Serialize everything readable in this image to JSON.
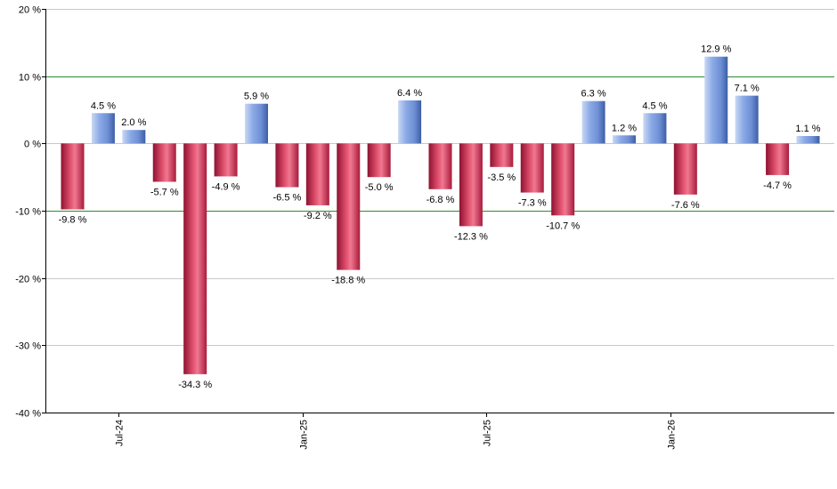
{
  "chart_data": {
    "type": "bar",
    "title": "",
    "xlabel": "",
    "ylabel": "",
    "ylim": [
      -40,
      20
    ],
    "y_ticks": [
      20,
      10,
      0,
      -10,
      -20,
      -30,
      -40
    ],
    "y_tick_labels": [
      "20 %",
      "10 %",
      "0 %",
      "-10 %",
      "-20 %",
      "-30 %",
      "-40 %"
    ],
    "reference_lines": [
      10,
      -10
    ],
    "x_tick_labels": [
      {
        "label": "Jul-24",
        "category_index": 1.5
      },
      {
        "label": "Jan-25",
        "category_index": 7.5
      },
      {
        "label": "Jul-25",
        "category_index": 13.5
      },
      {
        "label": "Jan-26",
        "category_index": 19.5
      }
    ],
    "values": [
      -9.8,
      4.5,
      2.0,
      -5.7,
      -34.3,
      -4.9,
      5.9,
      -6.5,
      -9.2,
      -18.8,
      -5.0,
      6.4,
      -6.8,
      -12.3,
      -3.5,
      -7.3,
      -10.7,
      6.3,
      1.2,
      4.5,
      -7.6,
      12.9,
      7.1,
      -4.7,
      1.1
    ],
    "value_labels": [
      "-9.8 %",
      "4.5 %",
      "2.0 %",
      "-5.7 %",
      "-34.3 %",
      "-4.9 %",
      "5.9 %",
      "-6.5 %",
      "-9.2 %",
      "-18.8 %",
      "-5.0 %",
      "6.4 %",
      "-6.8 %",
      "-12.3 %",
      "-3.5 %",
      "-7.3 %",
      "-10.7 %",
      "6.3 %",
      "1.2 %",
      "4.5 %",
      "-7.6 %",
      "12.9 %",
      "7.1 %",
      "-4.7 %",
      "1.1 %"
    ],
    "grid": true,
    "legend": "none",
    "colors": {
      "positive": "#6f93d8",
      "negative": "#c8294d",
      "reference_line": "#2e8b2e",
      "grid": "#c8c8c8",
      "axis": "#000000"
    }
  }
}
